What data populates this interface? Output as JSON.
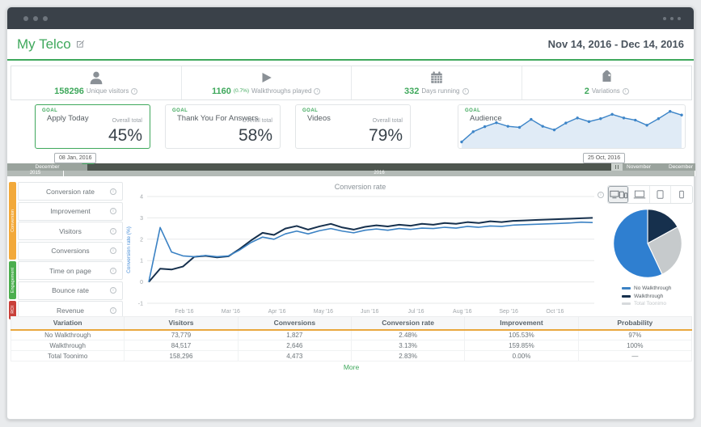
{
  "window": {
    "title": "My Telco",
    "date_range": "Nov 14, 2016 - Dec 14, 2016"
  },
  "colors": {
    "green": "#3fa85c",
    "orange_underline": "#e9a83e",
    "blue_line": "#3b82c4",
    "navy_line": "#16304d",
    "gray_series": "#c6cacc"
  },
  "stats": [
    {
      "icon": "visitor-icon",
      "value": "158296",
      "label": "Unique visitors"
    },
    {
      "icon": "play-icon",
      "value": "1160",
      "sub": "(0.7%)",
      "label": "Walkthroughs played"
    },
    {
      "icon": "calendar-icon",
      "value": "332",
      "label": "Days running"
    },
    {
      "icon": "tag-icon",
      "value": "2",
      "label": "Variations"
    }
  ],
  "goals": {
    "tag_label": "GOAL",
    "overall_total_label": "Overall total",
    "cards": [
      {
        "name": "Apply Today",
        "total": "45%",
        "selected": true
      },
      {
        "name": "Thank You For Answers",
        "total": "58%"
      },
      {
        "name": "Videos",
        "total": "79%"
      },
      {
        "name": "Audience",
        "type": "sparkline"
      }
    ]
  },
  "timeline": {
    "start_tooltip": "08 Jan, 2016",
    "end_tooltip": "25 Oct, 2016",
    "months_visible": [
      "December",
      "November",
      "December"
    ],
    "years": [
      "2015",
      "2016"
    ]
  },
  "sidebar": {
    "items": [
      "Conversion rate",
      "Improvement",
      "Visitors",
      "Conversions",
      "Time on page",
      "Bounce rate",
      "Revenue"
    ],
    "categories": [
      {
        "label": "Conversion",
        "color": "#f2a93b",
        "span": 4
      },
      {
        "label": "Engagement",
        "color": "#4cae4f",
        "span": 2
      },
      {
        "label": "ROI",
        "color": "#c9403a",
        "span": 1
      }
    ]
  },
  "device_filters": [
    "all-devices",
    "desktop",
    "tablet",
    "phone"
  ],
  "chart_data": [
    {
      "id": "audience-sparkline",
      "type": "area",
      "title": "Audience",
      "color": "#3d85c8",
      "ylim": [
        0,
        10
      ],
      "values": [
        1.0,
        3.8,
        5.2,
        6.3,
        5.3,
        5.0,
        7.2,
        5.3,
        4.3,
        6.2,
        7.6,
        6.6,
        7.4,
        8.6,
        7.6,
        7.0,
        5.6,
        7.4,
        9.4,
        8.4
      ]
    },
    {
      "id": "conversion-rate-chart",
      "type": "line",
      "title": "Conversion rate",
      "ylabel": "Conversion rate (%)",
      "ylim": [
        -1,
        4
      ],
      "yticks": [
        4,
        3,
        2,
        1,
        0,
        -1
      ],
      "xticklabels": [
        "Feb '16",
        "Mar '16",
        "Apr '16",
        "May '16",
        "Jun '16",
        "Jul '16",
        "Aug '16",
        "Sep '16",
        "Oct '16"
      ],
      "grid": true,
      "series": [
        {
          "name": "Walkthrough",
          "color": "#16304d",
          "values": [
            0,
            0.62,
            0.58,
            0.72,
            1.18,
            1.22,
            1.15,
            1.2,
            1.55,
            1.95,
            2.3,
            2.2,
            2.5,
            2.62,
            2.45,
            2.6,
            2.72,
            2.55,
            2.45,
            2.58,
            2.65,
            2.6,
            2.68,
            2.63,
            2.72,
            2.68,
            2.76,
            2.72,
            2.8,
            2.76,
            2.84,
            2.8,
            2.86,
            2.88,
            2.9,
            2.92,
            2.94,
            2.96,
            2.98,
            3.0
          ]
        },
        {
          "name": "No Walkthrough",
          "color": "#3b82c4",
          "values": [
            0,
            2.55,
            1.4,
            1.22,
            1.18,
            1.24,
            1.18,
            1.22,
            1.5,
            1.85,
            2.1,
            2.0,
            2.25,
            2.38,
            2.25,
            2.4,
            2.5,
            2.38,
            2.3,
            2.42,
            2.48,
            2.42,
            2.5,
            2.46,
            2.52,
            2.5,
            2.56,
            2.52,
            2.6,
            2.56,
            2.62,
            2.6,
            2.66,
            2.68,
            2.7,
            2.72,
            2.74,
            2.76,
            2.8,
            2.78
          ]
        }
      ]
    },
    {
      "id": "variation-pie",
      "type": "pie",
      "slices": [
        {
          "label": "Walkthrough",
          "value": 17,
          "color": "#16304d"
        },
        {
          "label": "Total Toonimo",
          "value": 26,
          "color": "#c6cacc"
        },
        {
          "label": "No Walkthrough",
          "value": 57,
          "color": "#2f7fd0"
        }
      ],
      "legend": [
        {
          "label": "No Walkthrough",
          "color": "#3b82c4",
          "muted": false
        },
        {
          "label": "Walkthrough",
          "color": "#16304d",
          "muted": false
        },
        {
          "label": "Total Toonimo",
          "color": "#c6cacc",
          "muted": true
        }
      ],
      "legend_position": "bottom"
    }
  ],
  "table": {
    "columns": [
      "Variation",
      "Visitors",
      "Conversions",
      "Conversion rate",
      "Improvement",
      "Probability"
    ],
    "rows": [
      [
        "No Walkthrough",
        "73,779",
        "1,827",
        "2.48%",
        "105.53%",
        "97%"
      ],
      [
        "Walkthrough",
        "84,517",
        "2,646",
        "3.13%",
        "159.85%",
        "100%"
      ],
      [
        "Total Toonimo",
        "158,296",
        "4,473",
        "2.83%",
        "0.00%",
        "—"
      ]
    ],
    "more_label": "More"
  }
}
